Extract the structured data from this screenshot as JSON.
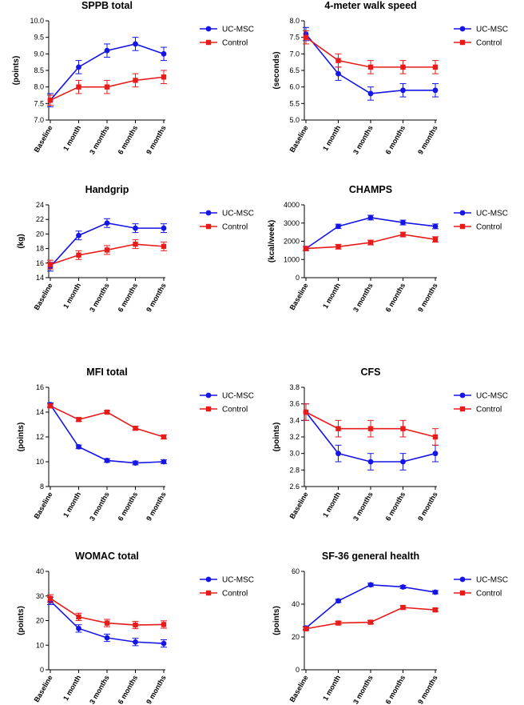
{
  "figure": {
    "groups": [
      {
        "name": "UC-MSC",
        "color": "#1515e6",
        "marker": "circle"
      },
      {
        "name": "Control",
        "color": "#e81b1b",
        "marker": "square"
      }
    ]
  },
  "chart_data": [
    {
      "type": "line",
      "title": "SPPB total",
      "xlabel": "",
      "ylabel": "(points)",
      "categories": [
        "Baseline",
        "1 month",
        "3 months",
        "6 months",
        "9 months"
      ],
      "ylim": [
        7.0,
        10.0
      ],
      "yticks": [
        "7.0",
        "7.5",
        "8.0",
        "8.5",
        "9.0",
        "9.5",
        "10.0"
      ],
      "series": [
        {
          "name": "UC-MSC",
          "values": [
            7.6,
            8.6,
            9.1,
            9.3,
            9.0
          ],
          "errors": [
            0.2,
            0.2,
            0.2,
            0.2,
            0.2
          ]
        },
        {
          "name": "Control",
          "values": [
            7.6,
            8.0,
            8.0,
            8.2,
            8.3
          ],
          "errors": [
            0.15,
            0.2,
            0.2,
            0.2,
            0.2
          ]
        }
      ],
      "legend": [
        "UC-MSC",
        "Control"
      ]
    },
    {
      "type": "line",
      "title": "4-meter walk speed",
      "xlabel": "",
      "ylabel": "(seconds)",
      "categories": [
        "Baseline",
        "1 month",
        "3 months",
        "6 months",
        "9 months"
      ],
      "ylim": [
        5.0,
        8.0
      ],
      "yticks": [
        "5.0",
        "5.5",
        "6.0",
        "6.5",
        "7.0",
        "7.5",
        "8.0"
      ],
      "series": [
        {
          "name": "UC-MSC",
          "values": [
            7.6,
            6.4,
            5.8,
            5.9,
            5.9
          ],
          "errors": [
            0.2,
            0.2,
            0.2,
            0.2,
            0.2
          ]
        },
        {
          "name": "Control",
          "values": [
            7.5,
            6.8,
            6.6,
            6.6,
            6.6
          ],
          "errors": [
            0.2,
            0.2,
            0.2,
            0.2,
            0.2
          ]
        }
      ],
      "legend": [
        "UC-MSC",
        "Control"
      ]
    },
    {
      "type": "line",
      "title": "Handgrip",
      "xlabel": "",
      "ylabel": "(kg)",
      "categories": [
        "Baseline",
        "1 month",
        "3 months",
        "6 months",
        "9 months"
      ],
      "ylim": [
        14,
        24
      ],
      "yticks": [
        "14",
        "16",
        "18",
        "20",
        "22",
        "24"
      ],
      "series": [
        {
          "name": "UC-MSC",
          "values": [
            15.5,
            19.8,
            21.5,
            20.8,
            20.8
          ],
          "errors": [
            0.6,
            0.6,
            0.6,
            0.6,
            0.6
          ]
        },
        {
          "name": "Control",
          "values": [
            15.8,
            17.1,
            17.8,
            18.6,
            18.3
          ],
          "errors": [
            0.6,
            0.6,
            0.6,
            0.6,
            0.6
          ]
        }
      ],
      "legend": [
        "UC-MSC",
        "Control"
      ]
    },
    {
      "type": "line",
      "title": "CHAMPS",
      "xlabel": "",
      "ylabel": "(kcal/week)",
      "categories": [
        "Baseline",
        "1 month",
        "3 months",
        "6 months",
        "9 months"
      ],
      "ylim": [
        0,
        4000
      ],
      "yticks": [
        "0",
        "1000",
        "2000",
        "3000",
        "4000"
      ],
      "series": [
        {
          "name": "UC-MSC",
          "values": [
            1600,
            2820,
            3300,
            3030,
            2820
          ],
          "errors": [
            120,
            120,
            130,
            130,
            130
          ]
        },
        {
          "name": "Control",
          "values": [
            1600,
            1700,
            1930,
            2370,
            2100
          ],
          "errors": [
            120,
            130,
            130,
            130,
            150
          ]
        }
      ],
      "legend": [
        "UC-MSC",
        "Control"
      ]
    },
    {
      "type": "line",
      "title": "MFI total",
      "xlabel": "",
      "ylabel": "(points)",
      "categories": [
        "Baseline",
        "1 month",
        "3 months",
        "6 months",
        "9 months"
      ],
      "ylim": [
        8,
        16
      ],
      "yticks": [
        "8",
        "10",
        "12",
        "14",
        "16"
      ],
      "series": [
        {
          "name": "UC-MSC",
          "values": [
            14.6,
            11.2,
            10.1,
            9.9,
            10.0
          ],
          "errors": [
            0.15,
            0.15,
            0.15,
            0.15,
            0.15
          ]
        },
        {
          "name": "Control",
          "values": [
            14.5,
            13.4,
            14.0,
            12.7,
            12.0
          ],
          "errors": [
            0.15,
            0.15,
            0.1,
            0.15,
            0.15
          ]
        }
      ],
      "legend": [
        "UC-MSC",
        "Control"
      ]
    },
    {
      "type": "line",
      "title": "CFS",
      "xlabel": "",
      "ylabel": "(points)",
      "categories": [
        "Baseline",
        "1 month",
        "3 months",
        "6 months",
        "9 months"
      ],
      "ylim": [
        2.6,
        3.8
      ],
      "yticks": [
        "2.6",
        "2.8",
        "3.0",
        "3.2",
        "3.4",
        "3.6",
        "3.8"
      ],
      "series": [
        {
          "name": "UC-MSC",
          "values": [
            3.5,
            3.0,
            2.9,
            2.9,
            3.0
          ],
          "errors": [
            0.1,
            0.1,
            0.1,
            0.1,
            0.1
          ]
        },
        {
          "name": "Control",
          "values": [
            3.5,
            3.3,
            3.3,
            3.3,
            3.2
          ],
          "errors": [
            0.1,
            0.1,
            0.1,
            0.1,
            0.1
          ]
        }
      ],
      "legend": [
        "UC-MSC",
        "Control"
      ]
    },
    {
      "type": "line",
      "title": "WOMAC total",
      "xlabel": "",
      "ylabel": "(points)",
      "categories": [
        "Baseline",
        "1 month",
        "3 months",
        "6 months",
        "9 months"
      ],
      "ylim": [
        0,
        40
      ],
      "yticks": [
        "0",
        "10",
        "20",
        "30",
        "40"
      ],
      "series": [
        {
          "name": "UC-MSC",
          "values": [
            28.0,
            16.8,
            13.0,
            11.3,
            10.7
          ],
          "errors": [
            1.5,
            1.5,
            1.5,
            1.5,
            1.5
          ]
        },
        {
          "name": "Control",
          "values": [
            29.0,
            21.5,
            19.0,
            18.2,
            18.4
          ],
          "errors": [
            1.5,
            1.5,
            1.5,
            1.5,
            1.5
          ]
        }
      ],
      "legend": [
        "UC-MSC",
        "Control"
      ]
    },
    {
      "type": "line",
      "title": "SF-36 general health",
      "xlabel": "",
      "ylabel": "(points)",
      "categories": [
        "Baseline",
        "1 month",
        "3 months",
        "6 months",
        "9 months"
      ],
      "ylim": [
        0,
        60
      ],
      "yticks": [
        "0",
        "20",
        "40",
        "60"
      ],
      "series": [
        {
          "name": "UC-MSC",
          "values": [
            25.5,
            42.0,
            51.8,
            50.5,
            47.3
          ],
          "errors": [
            1.0,
            1.0,
            1.0,
            1.0,
            1.0
          ]
        },
        {
          "name": "Control",
          "values": [
            25.0,
            28.5,
            29.0,
            38.0,
            36.5
          ],
          "errors": [
            1.0,
            1.0,
            1.0,
            1.0,
            1.0
          ]
        }
      ],
      "legend": [
        "UC-MSC",
        "Control"
      ]
    }
  ]
}
